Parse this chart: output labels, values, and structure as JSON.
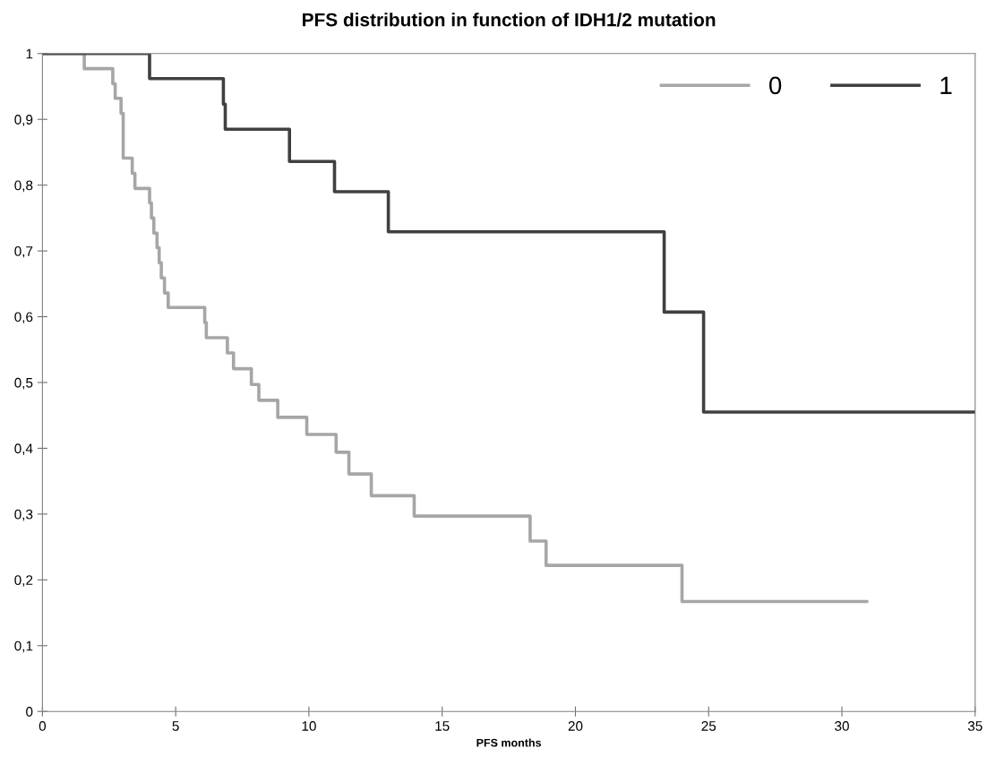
{
  "chart_data": {
    "type": "step",
    "title": "PFS distribution in function of IDH1/2 mutation",
    "xlabel": "PFS months",
    "xlim": [
      0,
      35
    ],
    "xticks": [
      0,
      5,
      10,
      15,
      20,
      25,
      30,
      35
    ],
    "ylim": [
      0,
      1
    ],
    "yticks": [
      0,
      {
        "value": 0.1,
        "label": "0,1"
      },
      {
        "value": 0.2,
        "label": "0,2"
      },
      {
        "value": 0.3,
        "label": "0,3"
      },
      {
        "value": 0.4,
        "label": "0,4"
      },
      {
        "value": 0.5,
        "label": "0,5"
      },
      {
        "value": 0.6,
        "label": "0,6"
      },
      {
        "value": 0.7,
        "label": "0,7"
      },
      {
        "value": 0.8,
        "label": "0,8"
      },
      {
        "value": 0.9,
        "label": "0,9"
      },
      1
    ],
    "grid": false,
    "legend": "top right",
    "marker": "none",
    "line_style": "solid",
    "series": [
      {
        "name": "0",
        "color": "#a6a6a6",
        "x": [
          0,
          1.57,
          2.64,
          2.73,
          2.95,
          3.03,
          3.37,
          3.47,
          4.02,
          4.09,
          4.18,
          4.3,
          4.38,
          4.46,
          4.58,
          4.72,
          6.09,
          6.15,
          6.94,
          7.17,
          7.84,
          8.12,
          8.83,
          9.92,
          11.02,
          11.5,
          12.34,
          13.95,
          18.3,
          18.9,
          24.0,
          30.93
        ],
        "values": [
          1,
          0.977,
          0.954,
          0.932,
          0.909,
          0.841,
          0.818,
          0.795,
          0.773,
          0.75,
          0.727,
          0.705,
          0.682,
          0.659,
          0.636,
          0.614,
          0.591,
          0.568,
          0.545,
          0.521,
          0.497,
          0.473,
          0.447,
          0.421,
          0.394,
          0.361,
          0.328,
          0.297,
          0.259,
          0.222,
          0.167,
          0.167
        ]
      },
      {
        "name": "1",
        "color": "#404040",
        "x": [
          0,
          4.02,
          6.79,
          6.86,
          9.27,
          10.96,
          12.98,
          23.33,
          24.81,
          35
        ],
        "values": [
          1,
          0.962,
          0.923,
          0.885,
          0.836,
          0.79,
          0.729,
          0.607,
          0.455,
          0.455
        ]
      }
    ]
  }
}
